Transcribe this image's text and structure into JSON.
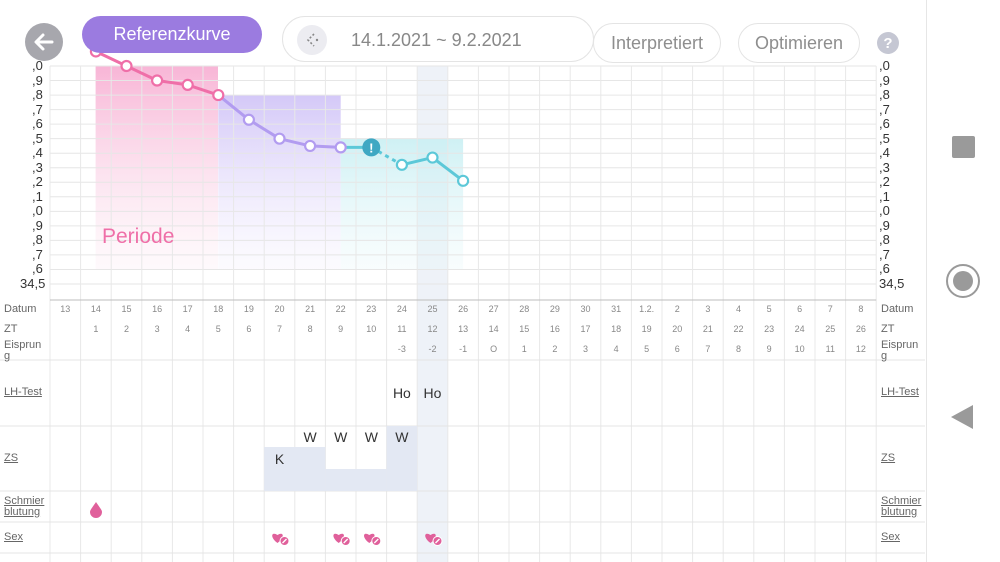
{
  "header": {
    "reference_curve_label": "Referenzkurve",
    "date_range": "14.1.2021 ~ 9.2.2021",
    "interpreted_label": "Interpretiert",
    "optimize_label": "Optimieren",
    "help_label": "?"
  },
  "chart": {
    "y_axis_labels": [
      ",0",
      ",9",
      ",8",
      ",7",
      ",6",
      ",5",
      ",4",
      ",3",
      ",2",
      ",1",
      ",0",
      ",9",
      ",8",
      ",7",
      ",6",
      "34,5"
    ],
    "period_label": "Periode",
    "alert_label": "!"
  },
  "chart_data": {
    "type": "line",
    "x_dates": [
      "14",
      "15",
      "16",
      "17",
      "18",
      "19",
      "20",
      "21",
      "22",
      "23",
      "24",
      "25",
      "26"
    ],
    "temperatures": [
      36.1,
      36.0,
      35.9,
      35.87,
      35.8,
      35.63,
      35.5,
      35.45,
      35.44,
      35.44,
      35.32,
      35.37,
      35.21
    ],
    "ylim": [
      34.5,
      36.0
    ],
    "phases": [
      {
        "name": "Periode",
        "from": "14",
        "to": "18"
      }
    ],
    "alert_on": "23"
  },
  "rows": {
    "datum_label": "Datum",
    "zt_label": "ZT",
    "ovulation_label": "Eisprun\ng",
    "lh_label": "LH-Test",
    "zs_label": "ZS",
    "spotting_label": "Schmier\nblutung",
    "sex_label": "Sex",
    "dates": [
      "13",
      "14",
      "15",
      "16",
      "17",
      "18",
      "19",
      "20",
      "21",
      "22",
      "23",
      "24",
      "25",
      "26",
      "27",
      "28",
      "29",
      "30",
      "31",
      "1.2.",
      "2",
      "3",
      "4",
      "5",
      "6",
      "7",
      "8"
    ],
    "zt": [
      "",
      "1",
      "2",
      "3",
      "4",
      "5",
      "6",
      "7",
      "8",
      "9",
      "10",
      "11",
      "12",
      "13",
      "14",
      "15",
      "16",
      "17",
      "18",
      "19",
      "20",
      "21",
      "22",
      "23",
      "24",
      "25",
      "26"
    ],
    "ovulation": [
      "",
      "",
      "",
      "",
      "",
      "",
      "",
      "",
      "",
      "",
      "",
      "-3",
      "-2",
      "-1",
      "O",
      "1",
      "2",
      "3",
      "4",
      "5",
      "6",
      "7",
      "8",
      "9",
      "10",
      "11",
      "12"
    ],
    "lh_values": [
      {
        "col": 11,
        "text": "Ho"
      },
      {
        "col": 12,
        "text": "Ho"
      }
    ],
    "zs_upper": [
      {
        "col": 8,
        "text": "W"
      },
      {
        "col": 9,
        "text": "W"
      },
      {
        "col": 10,
        "text": "W"
      },
      {
        "col": 11,
        "text": "W"
      }
    ],
    "zs_lower": [
      {
        "col": 7,
        "text": "K"
      }
    ]
  },
  "colors": {
    "accent": "#9b7be0",
    "pink": "#ef6fa8",
    "teal": "#5cc8d8",
    "purple_line": "#b29cf0"
  }
}
